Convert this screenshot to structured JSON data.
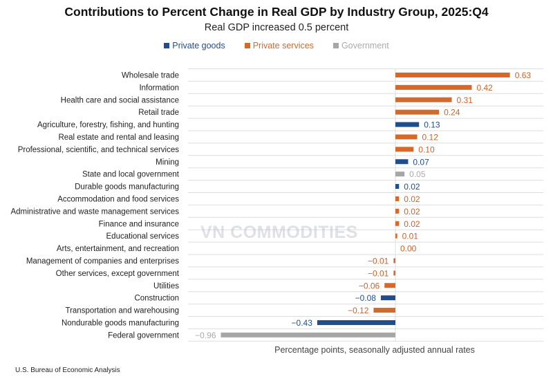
{
  "chart_data": {
    "type": "bar",
    "orientation": "horizontal",
    "title": "Contributions to Percent Change in Real GDP by Industry Group, 2025:Q4",
    "subtitle": "Real GDP increased 0.5 percent",
    "xlabel": "Percentage points, seasonally adjusted annual rates",
    "xlim": [
      -0.96,
      0.63
    ],
    "grid": true,
    "legend_placement": "top",
    "legend": [
      {
        "name": "Private goods",
        "color": "#1f4e8c"
      },
      {
        "name": "Private services",
        "color": "#d4692a"
      },
      {
        "name": "Government",
        "color": "#a6a6a6"
      }
    ],
    "categories": [
      "Wholesale trade",
      "Information",
      "Health care and social assistance",
      "Retail trade",
      "Agriculture, forestry, fishing, and hunting",
      "Real estate and rental and leasing",
      "Professional, scientific, and technical services",
      "Mining",
      "State and local government",
      "Durable goods manufacturing",
      "Accommodation and food services",
      "Administrative and waste management services",
      "Finance and insurance",
      "Educational services",
      "Arts, entertainment, and recreation",
      "Management of companies and enterprises",
      "Other services, except government",
      "Utilities",
      "Construction",
      "Transportation and warehousing",
      "Nondurable goods manufacturing",
      "Federal government"
    ],
    "values": [
      0.63,
      0.42,
      0.31,
      0.24,
      0.13,
      0.12,
      0.1,
      0.07,
      0.05,
      0.02,
      0.02,
      0.02,
      0.02,
      0.01,
      0.0,
      -0.01,
      -0.01,
      -0.06,
      -0.08,
      -0.12,
      -0.43,
      -0.96
    ],
    "data_labels": [
      "0.63",
      "0.42",
      "0.31",
      "0.24",
      "0.13",
      "0.12",
      "0.10",
      "0.07",
      "0.05",
      "0.02",
      "0.02",
      "0.02",
      "0.02",
      "0.01",
      "0.00",
      "−0.01",
      "−0.01",
      "−0.06",
      "−0.08",
      "−0.12",
      "−0.43",
      "−0.96"
    ],
    "groups": [
      "Private services",
      "Private services",
      "Private services",
      "Private services",
      "Private goods",
      "Private services",
      "Private services",
      "Private goods",
      "Government",
      "Private goods",
      "Private services",
      "Private services",
      "Private services",
      "Private services",
      "Private services",
      "Private services",
      "Private services",
      "Private services",
      "Private goods",
      "Private services",
      "Private goods",
      "Government"
    ]
  },
  "source": "U.S. Bureau of Economic Analysis",
  "watermark": "VN COMMODITIES"
}
